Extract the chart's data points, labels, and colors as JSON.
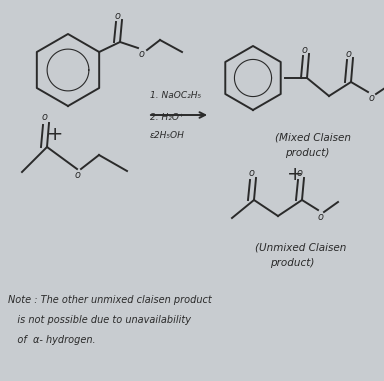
{
  "background_color": "#c8ccd0",
  "note_line1": "Note : The other unmixed claisen product",
  "note_line2": "   is not possible due to unavailability",
  "note_line3": "   of  α- hydrogen.",
  "reagent1": "1. NaOC₂H₅",
  "reagent2": "2. H₂O⁺",
  "reagent3": "ε2H₅OH",
  "mixed_line1": "(Mixed Claisen",
  "mixed_line2": "product)",
  "unmixed_line1": "(Unmixed Claisen",
  "unmixed_line2": "product)"
}
